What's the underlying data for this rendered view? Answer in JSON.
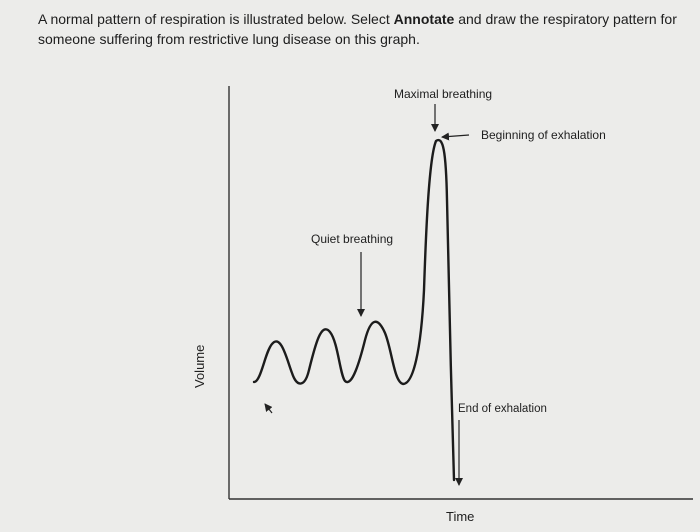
{
  "question": {
    "text_before": "A normal pattern of respiration is illustrated below. Select ",
    "bold_word": "Annotate",
    "text_after": " and draw the respiratory pattern for someone suffering from restrictive lung disease on this graph."
  },
  "figure": {
    "labels": {
      "maximal_breathing": "Maximal breathing",
      "beginning_of_exhalation": "Beginning of exhalation",
      "quiet_breathing": "Quiet breathing",
      "end_of_exhalation": "End of exhalation"
    },
    "axes": {
      "x_label": "Time",
      "y_label": "Volume"
    }
  }
}
